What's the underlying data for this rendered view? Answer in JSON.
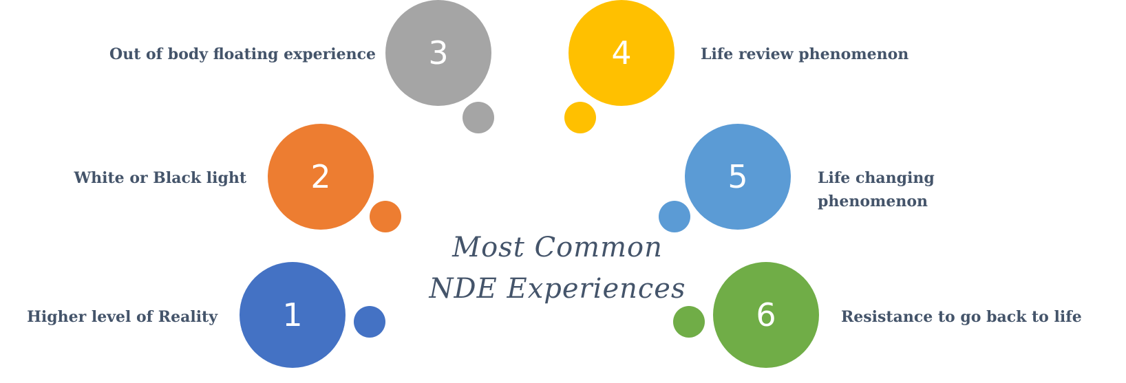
{
  "title": {
    "line1": "Most Common",
    "line2": "NDE Experiences"
  },
  "items": [
    {
      "number": "1",
      "label": "Higher level of Reality",
      "color": "#4472c4"
    },
    {
      "number": "2",
      "label": "White or Black light",
      "color": "#ed7d31"
    },
    {
      "number": "3",
      "label": "Out of body floating experience",
      "color": "#a5a5a5"
    },
    {
      "number": "4",
      "label": "Life review phenomenon",
      "color": "#ffc000"
    },
    {
      "number": "5",
      "label_line1": "Life changing",
      "label_line2": "phenomenon",
      "color": "#5b9bd5"
    },
    {
      "number": "6",
      "label": "Resistance to go back to life",
      "color": "#70ad47"
    }
  ],
  "text_color": "#44546a"
}
